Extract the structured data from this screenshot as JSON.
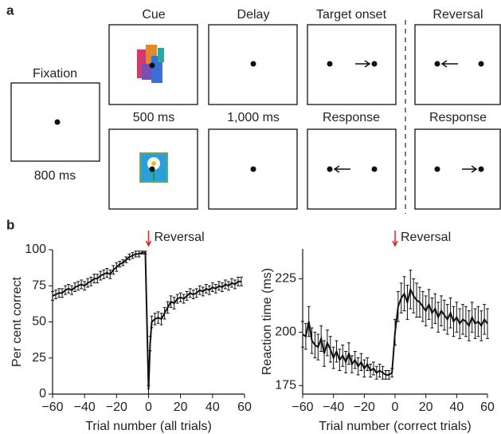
{
  "panel_a": {
    "letter": "a",
    "fixation": "Fixation",
    "fixation_time": "800 ms",
    "cue": "Cue",
    "cue_time": "500 ms",
    "delay": "Delay",
    "delay_time": "1,000 ms",
    "target": "Target onset",
    "response": "Response",
    "reversal": "Reversal",
    "reversal_response": "Response"
  },
  "panel_b": {
    "letter": "b"
  },
  "chart_data": [
    {
      "type": "line",
      "annotation": "Reversal",
      "xlabel": "Trial number (all trials)",
      "ylabel": "Per cent correct",
      "color": "#111",
      "x": [
        -60,
        -58,
        -56,
        -54,
        -52,
        -50,
        -48,
        -46,
        -44,
        -42,
        -40,
        -38,
        -36,
        -34,
        -32,
        -30,
        -28,
        -26,
        -24,
        -22,
        -20,
        -18,
        -16,
        -14,
        -12,
        -10,
        -8,
        -6,
        -4,
        -2,
        0,
        1,
        2,
        4,
        6,
        8,
        10,
        12,
        14,
        16,
        18,
        20,
        22,
        24,
        26,
        28,
        30,
        32,
        34,
        36,
        38,
        40,
        42,
        44,
        46,
        48,
        50,
        52,
        54,
        56,
        58
      ],
      "values": [
        68,
        69,
        70,
        70,
        72,
        73,
        72,
        74,
        75,
        76,
        75,
        77,
        78,
        80,
        80,
        82,
        83,
        84,
        83,
        86,
        88,
        90,
        91,
        93,
        95,
        96,
        97,
        97,
        98,
        98,
        3,
        35,
        50,
        52,
        53,
        52,
        56,
        60,
        64,
        63,
        66,
        67,
        66,
        68,
        70,
        69,
        70,
        72,
        71,
        73,
        72,
        74,
        73,
        75,
        74,
        76,
        75,
        77,
        76,
        78,
        78
      ],
      "errors": [
        3,
        3,
        3,
        3,
        3,
        3,
        3,
        3,
        3,
        3,
        3,
        3,
        3,
        3,
        3,
        3,
        3,
        3,
        3,
        3,
        3,
        2,
        2,
        2,
        2,
        2,
        2,
        2,
        1,
        1,
        3,
        5,
        4,
        4,
        4,
        4,
        4,
        4,
        4,
        4,
        3,
        3,
        3,
        3,
        3,
        3,
        3,
        3,
        3,
        3,
        3,
        3,
        3,
        3,
        3,
        3,
        3,
        3,
        3,
        3,
        3
      ],
      "xlim": [
        -60,
        60
      ],
      "ylim": [
        0,
        100
      ],
      "xticks": [
        {
          "value": -60,
          "label": "−60"
        },
        {
          "value": -40,
          "label": "−40"
        },
        {
          "value": -20,
          "label": "−20"
        },
        0,
        20,
        40,
        60
      ],
      "yticks": [
        0,
        25,
        50,
        75,
        100
      ]
    },
    {
      "type": "line",
      "annotation": "Reversal",
      "xlabel": "Trial number (correct trials)",
      "ylabel": "Reaction time (ms)",
      "color": "#111",
      "x": [
        -60,
        -58,
        -56,
        -54,
        -52,
        -50,
        -48,
        -46,
        -44,
        -42,
        -40,
        -38,
        -36,
        -34,
        -32,
        -30,
        -28,
        -26,
        -24,
        -22,
        -20,
        -18,
        -16,
        -14,
        -12,
        -10,
        -8,
        -6,
        -4,
        -2,
        0,
        2,
        4,
        6,
        8,
        10,
        12,
        14,
        16,
        18,
        20,
        22,
        24,
        26,
        28,
        30,
        32,
        34,
        36,
        38,
        40,
        42,
        44,
        46,
        48,
        50,
        52,
        54,
        56,
        58,
        60
      ],
      "values": [
        199,
        198,
        205,
        196,
        194,
        193,
        197,
        190,
        195,
        192,
        188,
        191,
        187,
        189,
        186,
        190,
        185,
        187,
        184,
        186,
        183,
        185,
        182,
        183,
        181,
        182,
        181,
        180,
        180,
        181,
        200,
        212,
        216,
        218,
        214,
        220,
        217,
        215,
        214,
        212,
        210,
        213,
        209,
        211,
        207,
        210,
        208,
        206,
        209,
        205,
        207,
        204,
        206,
        205,
        203,
        207,
        204,
        205,
        203,
        206,
        204
      ],
      "errors": [
        6,
        6,
        7,
        6,
        6,
        6,
        6,
        6,
        6,
        6,
        5,
        5,
        5,
        5,
        5,
        5,
        4,
        4,
        4,
        4,
        4,
        3,
        3,
        3,
        3,
        3,
        3,
        2,
        2,
        2,
        6,
        7,
        7,
        8,
        8,
        9,
        8,
        8,
        7,
        7,
        7,
        7,
        7,
        7,
        7,
        7,
        7,
        7,
        7,
        7,
        7,
        7,
        7,
        7,
        7,
        7,
        7,
        7,
        7,
        7,
        7
      ],
      "xlim": [
        -60,
        60
      ],
      "ylim": [
        171,
        239
      ],
      "xticks": [
        {
          "value": -60,
          "label": "−60"
        },
        {
          "value": -40,
          "label": "−40"
        },
        {
          "value": -20,
          "label": "−20"
        },
        0,
        20,
        40,
        60
      ],
      "yticks": [
        175,
        200,
        225
      ]
    }
  ]
}
